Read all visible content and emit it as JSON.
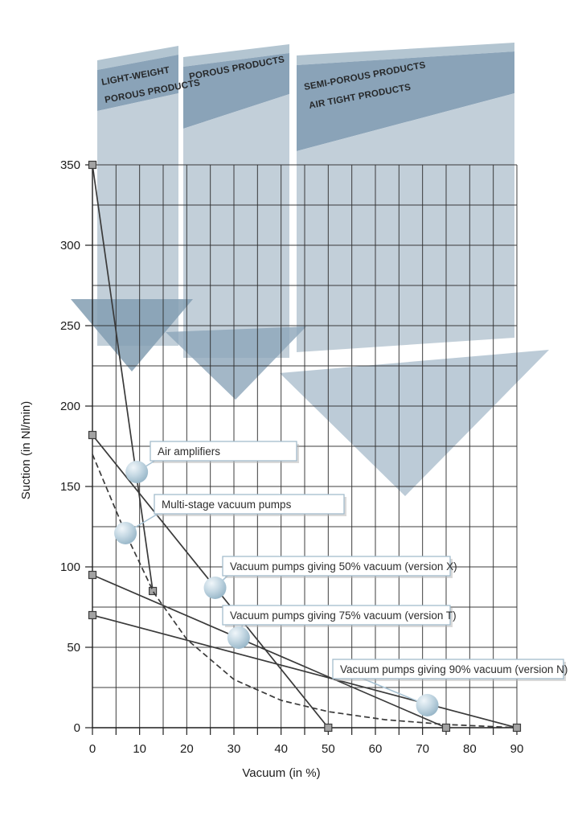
{
  "banners": [
    {
      "lines": [
        "LIGHT-WEIGHT",
        "POROUS PRODUCTS"
      ]
    },
    {
      "lines": [
        "POROUS PRODUCTS",
        ""
      ]
    },
    {
      "lines": [
        "SEMI-POROUS PRODUCTS",
        "AIR TIGHT PRODUCTS"
      ]
    }
  ],
  "axes": {
    "x": {
      "label": "Vacuum (in %)",
      "ticks": [
        0,
        10,
        20,
        30,
        40,
        50,
        60,
        70,
        80,
        90
      ],
      "grid_step": 5
    },
    "y": {
      "label": "Suction (in Nl/min)",
      "ticks": [
        0,
        50,
        100,
        150,
        200,
        250,
        300,
        350
      ],
      "grid_step": 25
    }
  },
  "colors": {
    "curve": "#3a3a3a",
    "marker_fill": "#a3a3a3",
    "marker_stroke": "#3b3b3b",
    "leader": "#a8c3d4",
    "callout_border": "#a3bccd",
    "banner_bevel": "#b3c5d1",
    "banner_dark": "#8aa3b8",
    "banner_light": "#c2cfd9",
    "arrow1": "rgba(130,157,178,0.85)",
    "arrow2": "rgba(140,165,185,0.80)",
    "arrow3": "rgba(176,194,208,0.85)",
    "ball_highlight": "#f0f6fa",
    "ball_mid": "#c6d9e4",
    "ball_edge": "#8fb0c3"
  },
  "chart_data": {
    "type": "line",
    "title": "",
    "xlabel": "Vacuum (in %)",
    "ylabel": "Suction (in Nl/min)",
    "xlim": [
      0,
      90
    ],
    "ylim": [
      0,
      350
    ],
    "grid": "on",
    "x_grid_step": 5,
    "y_grid_step": 25,
    "annotation_bands": [
      "LIGHT-WEIGHT POROUS PRODUCTS",
      "POROUS PRODUCTS",
      "SEMI-POROUS PRODUCTS / AIR TIGHT PRODUCTS"
    ],
    "series": [
      {
        "name": "Air amplifiers",
        "style": "solid",
        "points": [
          [
            0,
            350
          ],
          [
            12.8,
            85
          ]
        ],
        "markers": [
          [
            0,
            350
          ],
          [
            12.8,
            85
          ]
        ],
        "callout_at": [
          9.4,
          159
        ]
      },
      {
        "name": "Multi-stage vacuum pumps",
        "style": "dashed",
        "points": [
          [
            0,
            170
          ],
          [
            7,
            121
          ],
          [
            13,
            84
          ],
          [
            20,
            55
          ],
          [
            30,
            30
          ],
          [
            40,
            17
          ],
          [
            50,
            10
          ],
          [
            62,
            5
          ],
          [
            75,
            2
          ],
          [
            90,
            0
          ]
        ],
        "markers": [],
        "callout_at": [
          7,
          121
        ]
      },
      {
        "name": "Vacuum pumps giving 50% vacuum (version X)",
        "style": "solid",
        "points": [
          [
            0,
            182
          ],
          [
            50,
            0
          ]
        ],
        "markers": [
          [
            0,
            182
          ],
          [
            50,
            0
          ]
        ],
        "callout_at": [
          26,
          87
        ]
      },
      {
        "name": "Vacuum pumps giving 75% vacuum (version T)",
        "style": "solid",
        "points": [
          [
            0,
            95
          ],
          [
            75,
            0
          ]
        ],
        "markers": [
          [
            0,
            95
          ],
          [
            75,
            0
          ]
        ],
        "callout_at": [
          31,
          56
        ]
      },
      {
        "name": "Vacuum pumps giving 90% vacuum (version N)",
        "style": "solid",
        "points": [
          [
            0,
            70
          ],
          [
            90,
            0
          ]
        ],
        "markers": [
          [
            0,
            70
          ],
          [
            90,
            0
          ]
        ],
        "callout_at": [
          71,
          14
        ]
      }
    ]
  }
}
